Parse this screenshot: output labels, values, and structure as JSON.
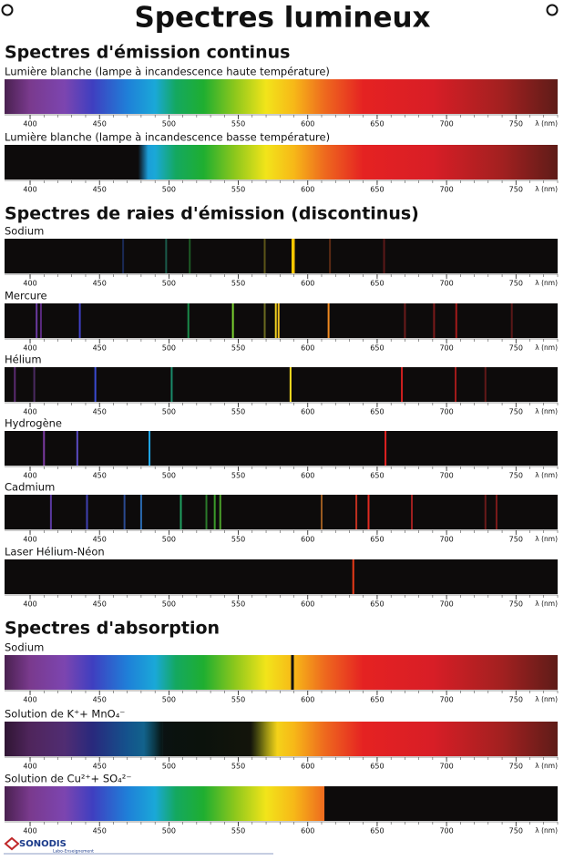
{
  "title": "Spectres lumineux",
  "axis": {
    "xlim": [
      381.6,
      780
    ],
    "ticks": [
      400,
      450,
      500,
      550,
      600,
      650,
      700,
      750
    ],
    "minor_step": 10,
    "unit": "λ (nm)"
  },
  "spectrum_colors": [
    [
      380,
      "#4a2150"
    ],
    [
      400,
      "#7a3a8e"
    ],
    [
      425,
      "#7c45b0"
    ],
    [
      445,
      "#3f3fc0"
    ],
    [
      470,
      "#1f7fd8"
    ],
    [
      490,
      "#1aa8d8"
    ],
    [
      505,
      "#14a860"
    ],
    [
      525,
      "#1fae30"
    ],
    [
      548,
      "#8fc81c"
    ],
    [
      570,
      "#f2e41a"
    ],
    [
      590,
      "#f7b818"
    ],
    [
      612,
      "#ee6a1e"
    ],
    [
      640,
      "#e52222"
    ],
    [
      690,
      "#d81e26"
    ],
    [
      740,
      "#a22020"
    ],
    [
      780,
      "#5e1c18"
    ]
  ],
  "sections": [
    {
      "heading": "Spectres d'émission continus",
      "spectra": [
        {
          "label": "Lumière blanche (lampe à incandescence haute température)",
          "kind": "continuous"
        },
        {
          "label": "Lumière blanche (lampe à incandescence basse température)",
          "kind": "continuous",
          "start": 485
        }
      ]
    },
    {
      "heading": "Spectres de raies d'émission (discontinus)",
      "spectra": [
        {
          "label": "Sodium",
          "kind": "lines",
          "lines": [
            {
              "nm": 467,
              "color": "#1a2a55"
            },
            {
              "nm": 498,
              "color": "#1a5a4a"
            },
            {
              "nm": 515,
              "color": "#1d5a25"
            },
            {
              "nm": 569,
              "color": "#5a5418"
            },
            {
              "nm": 589,
              "color": "#ffd000"
            },
            {
              "nm": 590,
              "color": "#f5c000"
            },
            {
              "nm": 616,
              "color": "#5a2a14"
            },
            {
              "nm": 655,
              "color": "#5a1818"
            }
          ]
        },
        {
          "label": "Mercure",
          "kind": "lines",
          "lines": [
            {
              "nm": 404.7,
              "color": "#6a3aa0"
            },
            {
              "nm": 407.8,
              "color": "#5a2a80"
            },
            {
              "nm": 435.8,
              "color": "#4040c8"
            },
            {
              "nm": 514,
              "color": "#1a8a4a"
            },
            {
              "nm": 546.1,
              "color": "#7ad030"
            },
            {
              "nm": 569,
              "color": "#6a6a20"
            },
            {
              "nm": 577,
              "color": "#f0d020"
            },
            {
              "nm": 579,
              "color": "#f0c020"
            },
            {
              "nm": 615,
              "color": "#f08a20"
            },
            {
              "nm": 670,
              "color": "#6a1a1a"
            },
            {
              "nm": 691,
              "color": "#7a1a1a"
            },
            {
              "nm": 707,
              "color": "#a01a1a"
            },
            {
              "nm": 747,
              "color": "#5a1818"
            }
          ]
        },
        {
          "label": "Hélium",
          "kind": "lines",
          "lines": [
            {
              "nm": 389,
              "color": "#5a2a70"
            },
            {
              "nm": 403,
              "color": "#4a2a60"
            },
            {
              "nm": 447,
              "color": "#3a4ad0"
            },
            {
              "nm": 502,
              "color": "#1a8a6a"
            },
            {
              "nm": 587.6,
              "color": "#ffe020"
            },
            {
              "nm": 667.8,
              "color": "#d02020"
            },
            {
              "nm": 706.5,
              "color": "#a01a1a"
            },
            {
              "nm": 728,
              "color": "#601818"
            }
          ]
        },
        {
          "label": "Hydrogène",
          "kind": "lines",
          "lines": [
            {
              "nm": 410,
              "color": "#7a3aa0"
            },
            {
              "nm": 434,
              "color": "#5a4ac0"
            },
            {
              "nm": 486,
              "color": "#20a8e8"
            },
            {
              "nm": 656,
              "color": "#e02020"
            }
          ]
        },
        {
          "label": "Cadmium",
          "kind": "lines",
          "lines": [
            {
              "nm": 415,
              "color": "#5a3aa0"
            },
            {
              "nm": 441,
              "color": "#4040b0"
            },
            {
              "nm": 468,
              "color": "#2a4a90"
            },
            {
              "nm": 480,
              "color": "#2a6ab0"
            },
            {
              "nm": 508.6,
              "color": "#20a060"
            },
            {
              "nm": 527,
              "color": "#2a7a2a"
            },
            {
              "nm": 533,
              "color": "#3a9a2a"
            },
            {
              "nm": 537,
              "color": "#4aa02a"
            },
            {
              "nm": 610,
              "color": "#9a5a20"
            },
            {
              "nm": 635,
              "color": "#c03020"
            },
            {
              "nm": 643.8,
              "color": "#e02a20"
            },
            {
              "nm": 675,
              "color": "#a02020"
            },
            {
              "nm": 728,
              "color": "#6a1a1a"
            },
            {
              "nm": 736,
              "color": "#7a1a1a"
            }
          ]
        },
        {
          "label": "Laser Hélium-Néon",
          "kind": "lines",
          "lines": [
            {
              "nm": 632.8,
              "color": "#e83a18"
            }
          ]
        }
      ]
    },
    {
      "heading": "Spectres d'absorption",
      "spectra": [
        {
          "label": "Sodium",
          "kind": "absorption",
          "lines": [
            589
          ]
        },
        {
          "label": "Solution de K⁺+ MnO₄⁻",
          "kind": "absorption",
          "band": [
            495,
            565
          ]
        },
        {
          "label": "Solution de Cu²⁺+ SO₄²⁻",
          "kind": "absorption",
          "cutoff": 612
        }
      ]
    }
  ],
  "footer": {
    "brand": "SONODIS",
    "tagline": "Labo-Enseignement"
  }
}
